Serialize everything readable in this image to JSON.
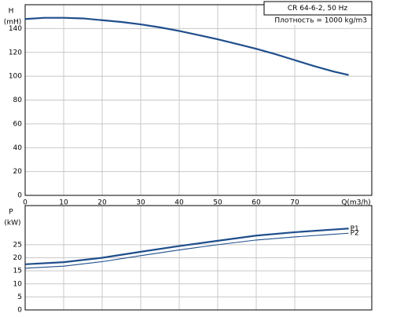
{
  "chart_data": [
    {
      "type": "line",
      "y_label": "H",
      "y_unit": "(mH)",
      "x_label": "Q(m3/h)",
      "annotations": [
        "CR 64-6-2, 50 Hz",
        "Плотность = 1000 kg/m3"
      ],
      "xlim": [
        0,
        90
      ],
      "xticks": [
        0,
        10,
        20,
        30,
        40,
        50,
        60,
        70
      ],
      "ylim": [
        0,
        160
      ],
      "yticks": [
        0,
        20,
        40,
        60,
        80,
        100,
        120,
        140
      ],
      "grid": true,
      "x": [
        0,
        5,
        10,
        15,
        20,
        25,
        30,
        35,
        40,
        45,
        50,
        55,
        60,
        65,
        70,
        75,
        80,
        84
      ],
      "series": [
        {
          "name": "H",
          "color": "#1f4e8c",
          "values": [
            148,
            149,
            149,
            148.5,
            147,
            145.5,
            143.5,
            141,
            138,
            134.5,
            131,
            127,
            123,
            118.5,
            113.5,
            108.5,
            104,
            101
          ]
        }
      ]
    },
    {
      "type": "line",
      "y_label": "P",
      "y_unit": "(kW)",
      "xlim": [
        0,
        90
      ],
      "xticks": [
        0,
        10,
        20,
        30,
        40,
        50,
        60,
        70
      ],
      "ylim": [
        0,
        40
      ],
      "yticks": [
        0,
        5,
        10,
        15,
        20,
        25
      ],
      "grid": true,
      "x": [
        0,
        10,
        20,
        30,
        40,
        50,
        60,
        70,
        80,
        84
      ],
      "series": [
        {
          "name": "P1",
          "color": "#1f4e8c",
          "values": [
            17.5,
            18.3,
            20,
            22.3,
            24.5,
            26.5,
            28.5,
            29.8,
            30.8,
            31.2
          ]
        },
        {
          "name": "P2",
          "color": "#1f4e8c",
          "values": [
            16,
            16.8,
            18.5,
            20.8,
            23,
            25,
            26.8,
            28,
            29,
            29.4
          ]
        }
      ]
    }
  ]
}
